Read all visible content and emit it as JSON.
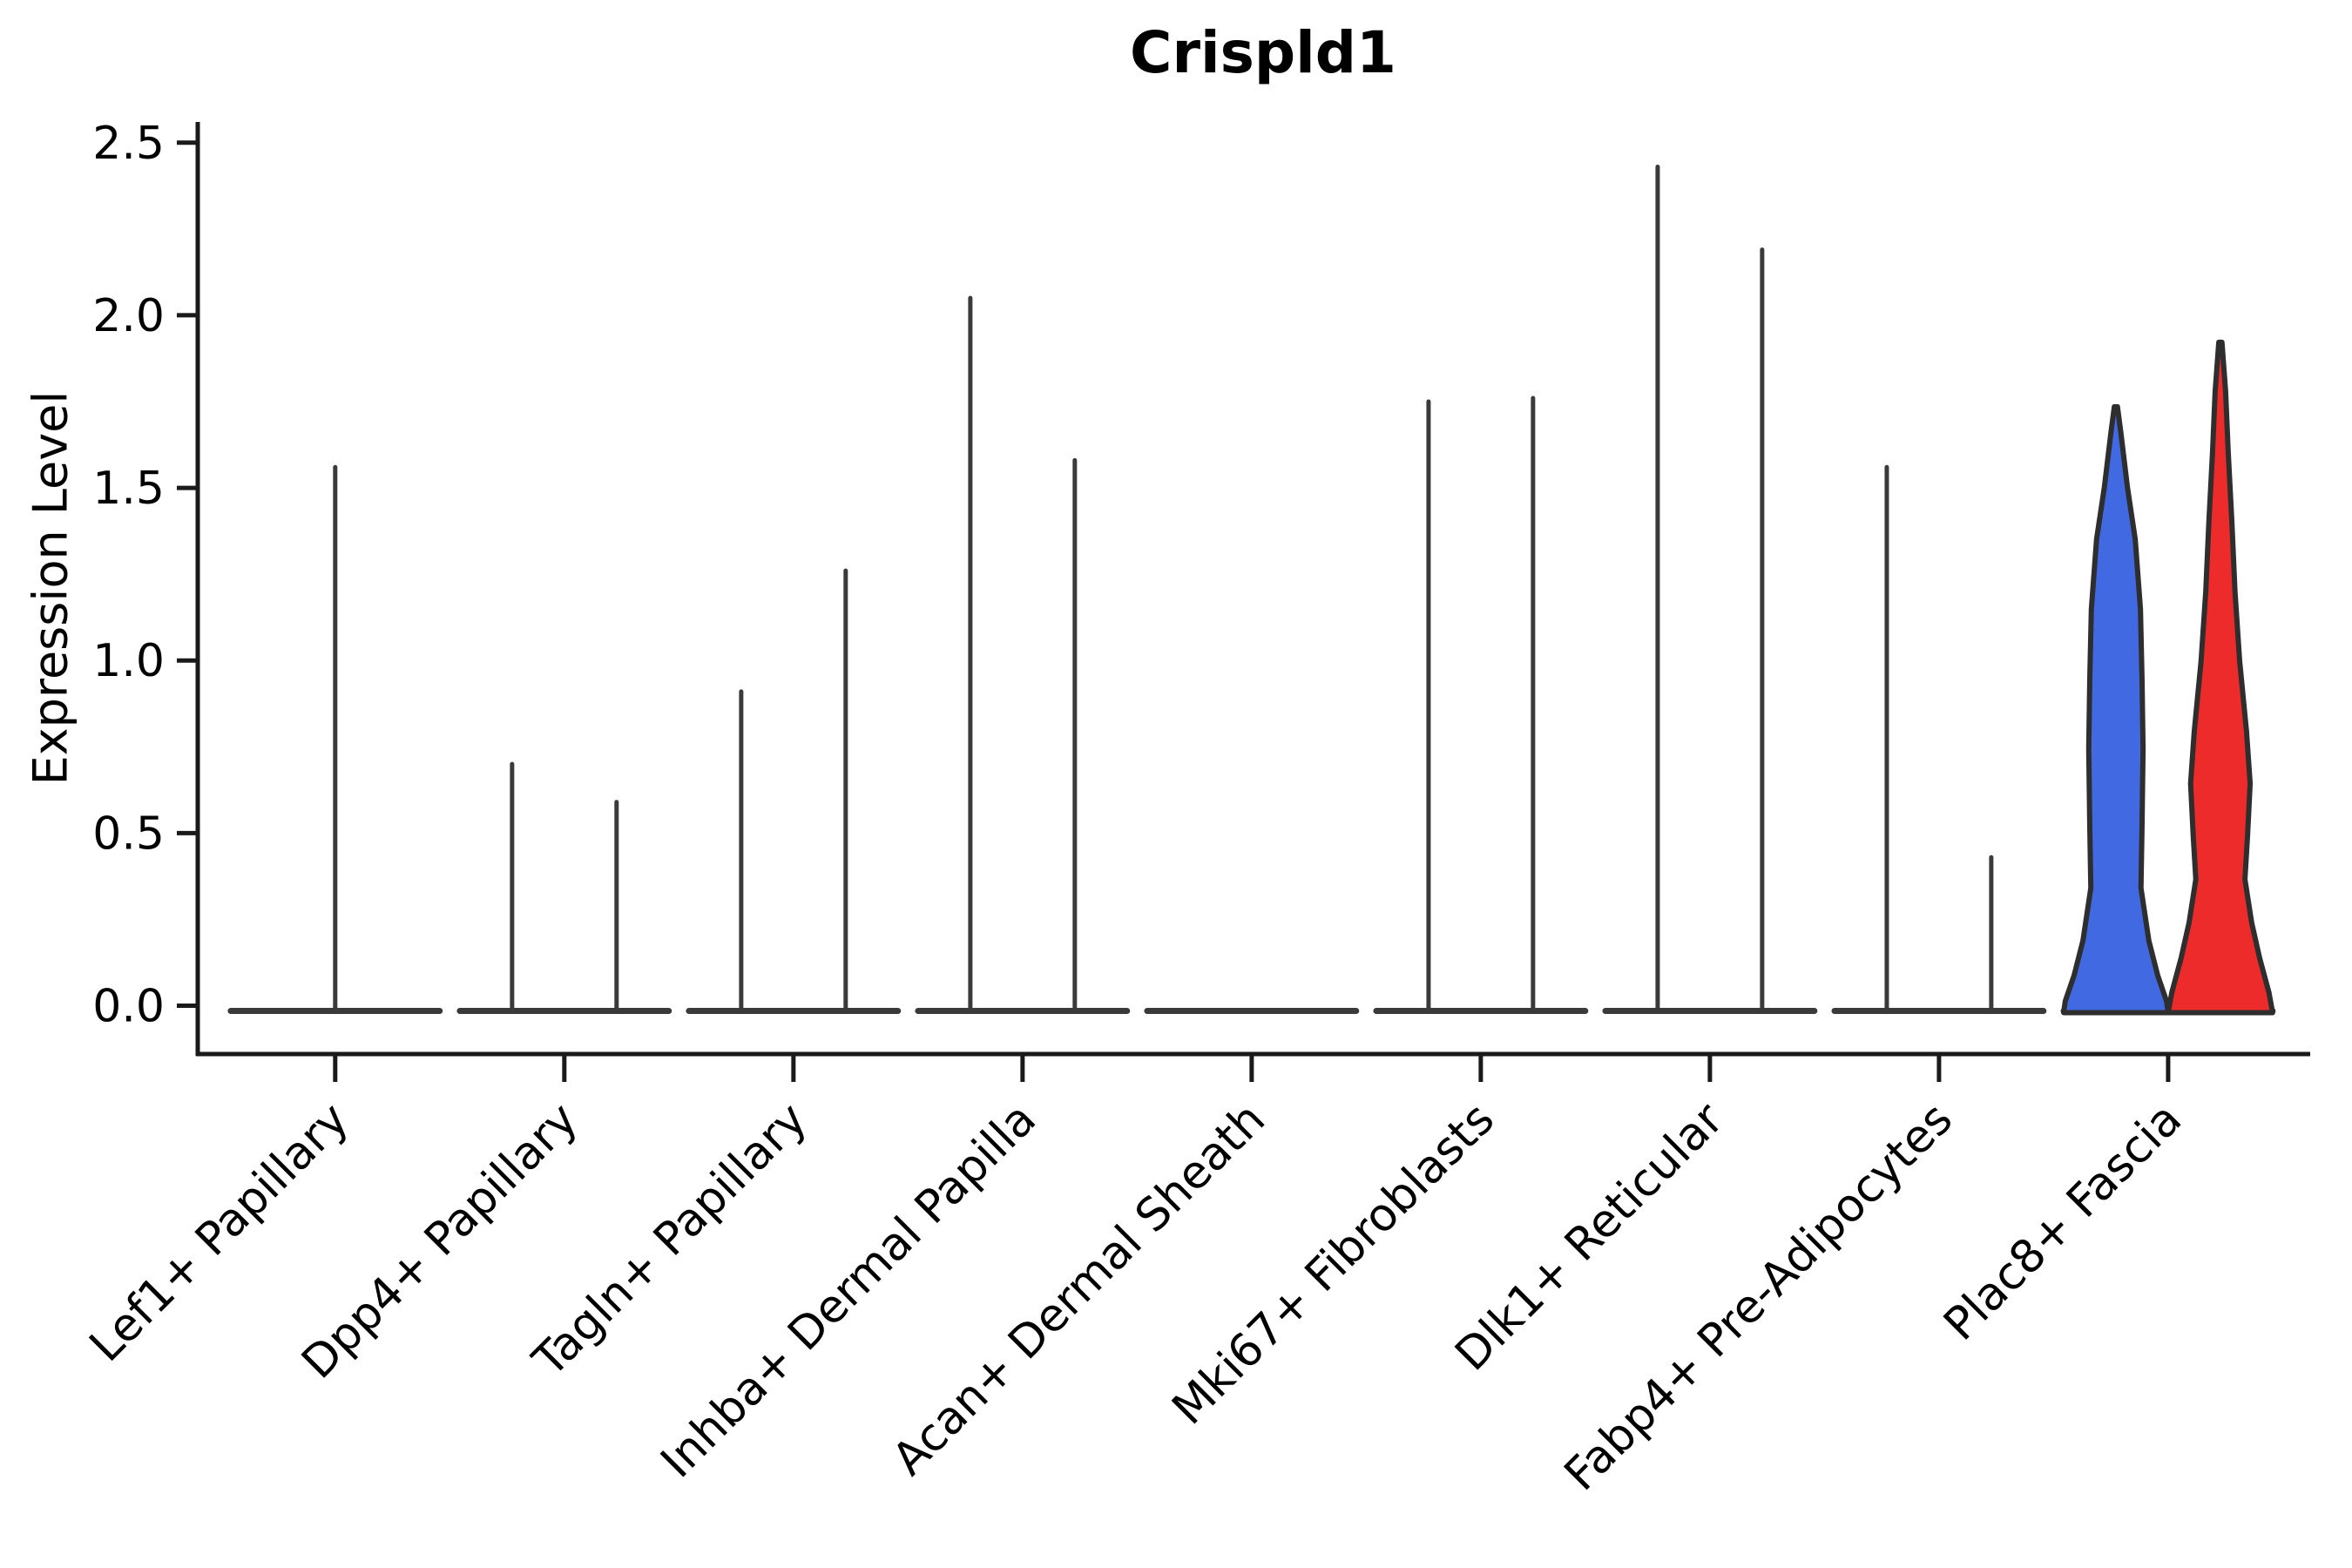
{
  "page": {
    "title": "Crispld1",
    "ylabel": "Expression Level"
  },
  "chart_data": {
    "type": "violin",
    "title": "Crispld1",
    "xlabel": "",
    "ylabel": "Expression Level",
    "ylim": [
      -0.14,
      2.56
    ],
    "xlim": [
      -0.6,
      8.62
    ],
    "grid": false,
    "legend": "none",
    "y_ticks": [
      "0.0",
      "0.5",
      "1.0",
      "1.5",
      "2.0",
      "2.5"
    ],
    "y_tick_values": [
      0.0,
      0.5,
      1.0,
      1.5,
      2.0,
      2.5
    ],
    "categories": [
      "Lef1+ Papillary",
      "Dpp4+ Papillary",
      "Tagln+ Papillary",
      "Inhba+ Dermal Papilla",
      "Acan+ Dermal Sheath",
      "Mki67+ Fibroblasts",
      "Dlk1+ Reticular",
      "Fabp4+ Pre-Adipocytes",
      "Plac8+ Fascia"
    ],
    "violin_halfwidth": 0.228,
    "colors": {
      "spike": "#3A3A3A",
      "violin_edge": "#2E2E2E",
      "axis": "#1A1A1A",
      "text": "#000000",
      "blue_fill": "#4169E1",
      "red_fill": "#ED2B2B"
    },
    "groups": [
      {
        "category": "Lef1+ Papillary",
        "violins": [
          {
            "kind": "spike",
            "dx": 0.0,
            "peak": 1.56
          }
        ]
      },
      {
        "category": "Dpp4+ Papillary",
        "violins": [
          {
            "kind": "spike",
            "dx": -0.228,
            "peak": 0.7
          },
          {
            "kind": "spike",
            "dx": 0.228,
            "peak": 0.59
          }
        ]
      },
      {
        "category": "Tagln+ Papillary",
        "violins": [
          {
            "kind": "spike",
            "dx": -0.228,
            "peak": 0.91
          },
          {
            "kind": "spike",
            "dx": 0.228,
            "peak": 1.26
          }
        ]
      },
      {
        "category": "Inhba+ Dermal Papilla",
        "violins": [
          {
            "kind": "spike",
            "dx": -0.228,
            "peak": 2.05
          },
          {
            "kind": "spike",
            "dx": 0.228,
            "peak": 1.58
          }
        ]
      },
      {
        "category": "Acan+ Dermal Sheath",
        "violins": []
      },
      {
        "category": "Mki67+ Fibroblasts",
        "violins": [
          {
            "kind": "spike",
            "dx": -0.228,
            "peak": 1.75
          },
          {
            "kind": "spike",
            "dx": 0.228,
            "peak": 1.76
          }
        ]
      },
      {
        "category": "Dlk1+ Reticular",
        "violins": [
          {
            "kind": "spike",
            "dx": -0.228,
            "peak": 2.43
          },
          {
            "kind": "spike",
            "dx": 0.228,
            "peak": 2.19
          }
        ]
      },
      {
        "category": "Fabp4+ Pre-Adipocytes",
        "violins": [
          {
            "kind": "spike",
            "dx": -0.228,
            "peak": 1.56
          },
          {
            "kind": "spike",
            "dx": 0.228,
            "peak": 0.43
          }
        ]
      },
      {
        "category": "Plac8+ Fascia",
        "violins": [
          {
            "kind": "violin",
            "dx": -0.228,
            "peak": 1.73,
            "fill": "#4169E1",
            "profile": [
              [
                1.735,
                0.03
              ],
              [
                1.654,
                0.1
              ],
              [
                1.503,
                0.22
              ],
              [
                1.351,
                0.37
              ],
              [
                1.149,
                0.47
              ],
              [
                0.947,
                0.5
              ],
              [
                0.745,
                0.52
              ],
              [
                0.518,
                0.5
              ],
              [
                0.341,
                0.48
              ],
              [
                0.189,
                0.63
              ],
              [
                0.088,
                0.8
              ],
              [
                0.013,
                0.97
              ],
              [
                -0.02,
                1.0
              ]
            ]
          },
          {
            "kind": "violin",
            "dx": 0.228,
            "peak": 1.92,
            "fill": "#ED2B2B",
            "profile": [
              [
                1.922,
                0.03
              ],
              [
                1.78,
                0.1
              ],
              [
                1.604,
                0.15
              ],
              [
                1.402,
                0.22
              ],
              [
                1.199,
                0.28
              ],
              [
                0.997,
                0.37
              ],
              [
                0.795,
                0.5
              ],
              [
                0.644,
                0.57
              ],
              [
                0.492,
                0.52
              ],
              [
                0.366,
                0.47
              ],
              [
                0.24,
                0.6
              ],
              [
                0.139,
                0.75
              ],
              [
                0.038,
                0.93
              ],
              [
                -0.02,
                1.0
              ]
            ]
          }
        ]
      }
    ]
  }
}
